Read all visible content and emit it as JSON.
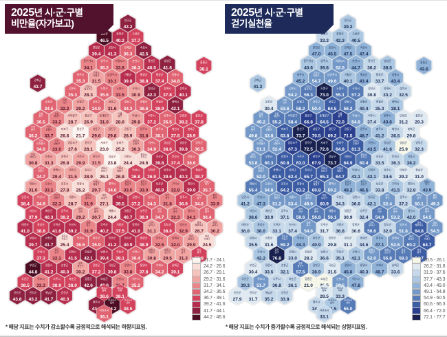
{
  "chart_data": {
    "type": "heatmap",
    "subtype": "hexagonal-cartogram-korea-sigungu",
    "maps": [
      {
        "key": "obesity",
        "header": {
          "year": "2025",
          "line1_rest": "년 시·군·구별",
          "line2": "비만율(자가보고)",
          "bg": "#52122e"
        },
        "footnote": "* 해당 지표는 수치가 감소할수록 긍정적으로 해석되는 하향지표임.",
        "legend_ranges": [
          "21.7 - 24.1",
          "24.2 - 26.6",
          "26.7 - 29.1",
          "29.2 - 31.6",
          "31.7 - 34.1",
          "34.2 - 36.6",
          "36.7 - 39.1",
          "39.2 - 41.6",
          "41.7 - 44.1",
          "44.2 - 46.6"
        ],
        "bounds": [
          21.7,
          24.2,
          26.7,
          29.2,
          31.7,
          34.2,
          36.7,
          39.2,
          41.7,
          44.2
        ],
        "palette": [
          "#fcf4ee",
          "#f9ded8",
          "#f5c2bc",
          "#f0a5a2",
          "#ea8689",
          "#e16472",
          "#d4435e",
          "#b82e4e",
          "#8e2040",
          "#4d0e24"
        ],
        "dark_text": "#531129"
      },
      {
        "key": "walking",
        "header": {
          "year": "2025",
          "line1_rest": "년 시·군·구별",
          "line2": "걷기실천율",
          "bg": "#1d2a5a"
        },
        "footnote": "* 해당 지표는 수치가 증가할수록 긍정적으로 해석되는 상향지표임.",
        "legend_ranges": [
          "20.5 - 26.1",
          "26.2 - 31.8",
          "31.9 - 37.6",
          "37.7 - 43.3",
          "43.4 - 49.0",
          "49.1 - 54.8",
          "54.9 - 60.5",
          "60.6 - 66.3",
          "66.4 - 72.0",
          "72.1 - 77.7"
        ],
        "bounds": [
          20.5,
          26.2,
          31.9,
          37.7,
          43.4,
          49.1,
          54.9,
          60.6,
          66.4,
          72.1
        ],
        "palette": [
          "#f6f7e9",
          "#dfe9f1",
          "#c6d9ea",
          "#abc7e1",
          "#90b3d7",
          "#7499c8",
          "#567bb6",
          "#3c5ca4",
          "#2a3f8d",
          "#18214f"
        ],
        "dark_text": "#1c2b55"
      }
    ],
    "regions_note": "each region: [name, col, row, obesity_pct, walking_pct]",
    "regions": [
      [
        "양구군",
        7,
        0,
        43.2,
        39.2
      ],
      [
        "철원군",
        5.5,
        1,
        46.5,
        33.3
      ],
      [
        "화천군",
        6.5,
        1,
        40.2,
        42.3
      ],
      [
        "고성군",
        7.5,
        1,
        37.7,
        40.5
      ],
      [
        "연천군",
        5,
        2,
        39.4,
        47.0
      ],
      [
        "포천시",
        6,
        2,
        41.3,
        45.5
      ],
      [
        "인제군",
        7,
        2,
        36.3,
        47.5
      ],
      [
        "속초시",
        8,
        2,
        42.5,
        47.4
      ],
      [
        "동두천시",
        4.5,
        3,
        34.1,
        40.6
      ],
      [
        "양주시",
        5.5,
        3,
        36.2,
        39.8
      ],
      [
        "의정부시",
        6.5,
        3,
        33.8,
        52.5
      ],
      [
        "춘천시",
        7.5,
        3,
        36.3,
        44.7
      ],
      [
        "홍천군",
        8.5,
        3,
        40.5,
        36.2
      ],
      [
        "양양군",
        9.5,
        3,
        41.8,
        38.5
      ],
      [
        "울릉군",
        11.8,
        3.1,
        38.1,
        43.6
      ],
      [
        "파주시",
        4,
        4,
        35.3,
        45.2
      ],
      [
        "고양시 덕양구",
        5,
        4,
        31.5,
        54.7
      ],
      [
        "남양주시",
        6,
        4,
        33.1,
        49.6
      ],
      [
        "가평군",
        7,
        4,
        39.8,
        40.1
      ],
      [
        "횡성군",
        8,
        4,
        38.8,
        43.4
      ],
      [
        "평창군",
        9,
        4,
        37.4,
        33.7
      ],
      [
        "강릉시",
        10,
        4,
        34.8,
        43.4
      ],
      [
        "강화군",
        1.3,
        4.4,
        43.7,
        41.3
      ],
      [
        "김포시",
        3.5,
        5,
        35.3,
        54.2
      ],
      [
        "고양시 일산서구",
        4.5,
        5,
        28.3,
        56.3
      ],
      [
        "도봉구",
        5.5,
        5,
        35.6,
        73.0
      ],
      [
        "노원구",
        6.5,
        5,
        33.5,
        55.1
      ],
      [
        "구리시",
        7.5,
        5,
        30.9,
        57.2
      ],
      [
        "정선군",
        8.5,
        5,
        42.3,
        30.8
      ],
      [
        "동해시",
        9.5,
        5,
        37.8,
        33.2
      ],
      [
        "삼척시",
        10.5,
        5,
        40.1,
        32.5
      ],
      [
        "옹진군",
        2,
        6,
        34.5,
        30.4
      ],
      [
        "인천 서구",
        3,
        6,
        32.2,
        53.6
      ],
      [
        "은평구",
        4,
        6,
        29.2,
        58.2
      ],
      [
        "강북구",
        5,
        6,
        34.9,
        50.4
      ],
      [
        "성북구",
        6,
        6,
        31.6,
        64.5
      ],
      [
        "중랑구",
        7,
        6,
        34.3,
        56.2
      ],
      [
        "양평군",
        8,
        6,
        36.6,
        40.4
      ],
      [
        "영월군",
        9,
        6,
        38.9,
        35.3
      ],
      [
        "태백시",
        10,
        6,
        42.1,
        38.1
      ],
      [
        "인천 중구",
        1.5,
        7,
        36.5,
        49.2
      ],
      [
        "인천 계양구",
        2.5,
        7,
        33.2,
        55.2
      ],
      [
        "서대문구",
        3.5,
        7,
        28.7,
        58.4
      ],
      [
        "종로구",
        4.5,
        7,
        26.9,
        66.8
      ],
      [
        "동대문구",
        5.5,
        7,
        31.0,
        64.5
      ],
      [
        "서울 중구",
        6.5,
        7,
        28.6,
        72.0
      ],
      [
        "하남시",
        7.5,
        7,
        29.8,
        54.6
      ],
      [
        "여주시",
        8.5,
        7,
        37.2,
        37.4
      ],
      [
        "원주시",
        9.5,
        7,
        35.5,
        43.6
      ],
      [
        "단양군",
        10.5,
        7,
        38.2,
        31.2
      ],
      [
        "울진군",
        11.5,
        7,
        37.8,
        29.3
      ],
      [
        "인천 동구",
        1,
        8,
        36.2,
        49.8
      ],
      [
        "인천 부평구",
        2,
        8,
        33.7,
        53.8
      ],
      [
        "마포구",
        3,
        8,
        26.6,
        63.8
      ],
      [
        "용산구",
        4,
        8,
        21.7,
        73.7
      ],
      [
        "성동구",
        5,
        8,
        29.6,
        70.5
      ],
      [
        "광진구",
        6,
        8,
        29.8,
        69.2
      ],
      [
        "강동구",
        7,
        8,
        28.9,
        71.5
      ],
      [
        "광주시",
        8,
        8,
        31.8,
        48.7
      ],
      [
        "충주시",
        9,
        8,
        36.1,
        41.2
      ],
      [
        "제천시",
        10,
        8,
        37.6,
        36.5
      ],
      [
        "봉화군",
        11,
        8,
        38.9,
        29.8
      ],
      [
        "인천 미추홀구",
        1.5,
        9,
        34.6,
        51.1
      ],
      [
        "인천 남동구",
        2.5,
        9,
        33.0,
        52.4
      ],
      [
        "영등포구",
        3.5,
        9,
        27.6,
        67.3
      ],
      [
        "동작구",
        4.5,
        9,
        28.1,
        72.5
      ],
      [
        "서초구",
        5.5,
        9,
        23.0,
        72.6
      ],
      [
        "송파구",
        6.5,
        9,
        25.2,
        64.8
      ],
      [
        "성남시 수정구",
        7.5,
        9,
        30.3,
        61.3
      ],
      [
        "이천시",
        8.5,
        9,
        34.9,
        43.5
      ],
      [
        "음성군",
        9.5,
        9,
        38.6,
        41.6
      ],
      [
        "영양군",
        10.5,
        9,
        39.8,
        25.9
      ],
      [
        "영덕군",
        11.5,
        9,
        36.5,
        32.3
      ],
      [
        "인천 연수구",
        1,
        10,
        30.8,
        53.8
      ],
      [
        "부천시",
        2,
        10,
        31.3,
        60.3
      ],
      [
        "양천구",
        3,
        10,
        26.8,
        60.8
      ],
      [
        "구로구",
        4,
        10,
        29.9,
        63.0
      ],
      [
        "관악구",
        5,
        10,
        31.5,
        67.9
      ],
      [
        "강남구",
        6,
        10,
        23.8,
        73.7
      ],
      [
        "과천시",
        7,
        10,
        24.4,
        64.9
      ],
      [
        "용인시 수지구",
        8,
        10,
        24.6,
        60.4
      ],
      [
        "괴산군",
        9,
        10,
        39.8,
        33.5
      ],
      [
        "문경시",
        10,
        10,
        37.4,
        36.3
      ],
      [
        "안동시",
        11,
        10,
        36.6,
        38.2
      ],
      [
        "안산시 단원구",
        1.5,
        11,
        34.7,
        52.0
      ],
      [
        "광명시",
        2.5,
        11,
        29.4,
        61.5
      ],
      [
        "금천구",
        3.5,
        11,
        31.5,
        62.4
      ],
      [
        "강서구",
        4.5,
        11,
        28.9,
        65.7
      ],
      [
        "성남시 분당구",
        5.5,
        11,
        26.1,
        65.3
      ],
      [
        "수원시 영통구",
        6.5,
        11,
        26.8,
        64.7
      ],
      [
        "안성시",
        7.5,
        11,
        36.8,
        43.1
      ],
      [
        "진천군",
        8.5,
        11,
        36.9,
        42.1
      ],
      [
        "상주시",
        9.5,
        11,
        39.6,
        34.6
      ],
      [
        "의성군",
        10.5,
        11,
        40.3,
        29.2
      ],
      [
        "청송군",
        11.5,
        11,
        38.7,
        31.0
      ],
      [
        "화성시",
        1,
        12,
        31.0,
        55.4
      ],
      [
        "오산시",
        2,
        12,
        33.1,
        54.8
      ],
      [
        "군포시",
        3,
        12,
        27.8,
        64.2
      ],
      [
        "의왕시",
        4,
        12,
        25.2,
        63.2
      ],
      [
        "수원시 팔달구",
        5,
        12,
        29.7,
        60.8
      ],
      [
        "평택시",
        6,
        12,
        34.6,
        50.2
      ],
      [
        "천안시 동남구",
        7,
        12,
        33.5,
        48.2
      ],
      [
        "청주시 상당구",
        8,
        12,
        33.0,
        46.5
      ],
      [
        "보은군",
        9,
        12,
        40.9,
        33.8
      ],
      [
        "구미시",
        10,
        12,
        32.8,
        41.5
      ],
      [
        "영천시",
        11,
        12,
        39.9,
        32.8
      ],
      [
        "포항시 북구",
        12,
        12,
        35.7,
        43.9
      ],
      [
        "당진시",
        0.5,
        13,
        38.4,
        41.2
      ],
      [
        "아산시",
        1.5,
        13,
        34.9,
        47.3
      ],
      [
        "천안시 서북구",
        2.5,
        13,
        32.3,
        51.2
      ],
      [
        "세종시",
        3.5,
        13,
        28.7,
        53.4
      ],
      [
        "청주시 흥덕구",
        4.5,
        13,
        31.9,
        49.9
      ],
      [
        "대전 유성구",
        5.5,
        13,
        27.1,
        60.9
      ],
      [
        "옥천군",
        6.5,
        13,
        39.5,
        34.3
      ],
      [
        "김천시",
        7.5,
        13,
        37.2,
        36.6
      ],
      [
        "칠곡군",
        8.5,
        13,
        34.3,
        42.1
      ],
      [
        "대구 북구",
        9.5,
        13,
        31.8,
        52.4
      ],
      [
        "경주시",
        10.5,
        13,
        36.9,
        37.2
      ],
      [
        "포항시 남구",
        11.5,
        13,
        34.6,
        50.1
      ],
      [
        "울산 북구",
        12.5,
        13,
        33.9,
        49.3
      ],
      [
        "서산시",
        1,
        14,
        37.9,
        38.6
      ],
      [
        "예산군",
        2,
        14,
        40.3,
        33.9
      ],
      [
        "공주시",
        3,
        14,
        38.2,
        37.1
      ],
      [
        "대전 서구",
        4,
        14,
        29.2,
        58.6
      ],
      [
        "대전 중구",
        5,
        14,
        30.7,
        56.8
      ],
      [
        "계룡시",
        6,
        14,
        24.4,
        56.1
      ],
      [
        "영동군",
        7,
        14,
        40.7,
        30.9
      ],
      [
        "성주군",
        8,
        14,
        38.0,
        32.4
      ],
      [
        "대구 서구",
        9,
        14,
        34.7,
        54.9
      ],
      [
        "대구 동구",
        10,
        14,
        32.3,
        53.2
      ],
      [
        "경산시",
        11,
        14,
        34.1,
        42.0
      ],
      [
        "울산 동구",
        12,
        14,
        36.4,
        54.5
      ],
      [
        "태안군",
        0.5,
        15,
        41.0,
        36.0
      ],
      [
        "홍성군",
        1.5,
        15,
        38.8,
        38.0
      ],
      [
        "부여군",
        2.5,
        15,
        41.6,
        33.1
      ],
      [
        "논산시",
        3.5,
        15,
        39.2,
        37.4
      ],
      [
        "대전 동구",
        4.5,
        15,
        31.9,
        54.0
      ],
      [
        "무주군",
        5.5,
        15,
        40.2,
        31.7
      ],
      [
        "거창군",
        6.5,
        15,
        37.5,
        36.8
      ],
      [
        "합천군",
        7.5,
        15,
        41.0,
        30.6
      ],
      [
        "대구 달서구",
        8.5,
        15,
        31.1,
        56.6
      ],
      [
        "청도군",
        9.5,
        15,
        38.8,
        32.0
      ],
      [
        "양산시",
        10.5,
        15,
        32.9,
        51.8
      ],
      [
        "부산 해운대구",
        11.5,
        15,
        28.7,
        64.8
      ],
      [
        "부산 금정구",
        12.5,
        15,
        30.2,
        54.5
      ],
      [
        "보령시",
        1,
        16,
        39.7,
        35.5
      ],
      [
        "서천군",
        2,
        16,
        41.7,
        31.6
      ],
      [
        "전주시 덕진구",
        3,
        16,
        25.4,
        59.2
      ],
      [
        "익산시",
        4,
        16,
        36.6,
        44.3
      ],
      [
        "완주군",
        5,
        16,
        35.9,
        40.9
      ],
      [
        "진안군",
        6,
        16,
        41.2,
        29.8
      ],
      [
        "장수군",
        7,
        16,
        40.9,
        31.1
      ],
      [
        "함양군",
        8,
        16,
        38.9,
        34.6
      ],
      [
        "진주시",
        9,
        16,
        32.5,
        47.1
      ],
      [
        "김해시",
        10,
        16,
        32.0,
        52.6
      ],
      [
        "부산 동래구",
        11,
        16,
        29.9,
        60.2
      ],
      [
        "부산 수영구",
        12,
        16,
        24.5,
        64.7
      ],
      [
        "군산시",
        1.5,
        17,
        37.3,
        42.2
      ],
      [
        "광주 남구",
        2.5,
        17,
        32.1,
        76.8
      ],
      [
        "김제시",
        3.5,
        17,
        41.5,
        33.0
      ],
      [
        "임실군",
        4.5,
        17,
        42.1,
        28.2
      ],
      [
        "남원시",
        5.5,
        17,
        39.4,
        36.6
      ],
      [
        "하동군",
        6.5,
        17,
        38.1,
        35.1
      ],
      [
        "사천시",
        7.5,
        17,
        36.4,
        42.1
      ],
      [
        "창원시 의창구",
        8.5,
        17,
        30.8,
        52.0
      ],
      [
        "창원시 성산구",
        9.5,
        17,
        29.5,
        55.8
      ],
      [
        "부산 남구",
        10.5,
        17,
        31.3,
        58.3
      ],
      [
        "부산 중구",
        11.5,
        17,
        36.8,
        64.7
      ],
      [
        "부안군",
        1,
        18,
        44.8,
        30.4
      ],
      [
        "정읍시",
        2,
        18,
        41.2,
        33.5
      ],
      [
        "순창군",
        3,
        18,
        40.0,
        32.1
      ],
      [
        "광주 광산구",
        4,
        18,
        30.2,
        57.5
      ],
      [
        "담양군",
        5,
        18,
        37.2,
        38.9
      ],
      [
        "곡성군",
        6,
        18,
        39.8,
        31.5
      ],
      [
        "광양시",
        7,
        18,
        33.8,
        45.6
      ],
      [
        "통영시",
        8,
        18,
        37.8,
        40.3
      ],
      [
        "거제시",
        9,
        18,
        34.2,
        48.7
      ],
      [
        "남해군",
        10,
        18,
        39.1,
        33.6
      ],
      [
        "무안군",
        0.5,
        19,
        38.5,
        39.3
      ],
      [
        "목포시",
        1.5,
        19,
        33.3,
        51.7
      ],
      [
        "나주시",
        2.5,
        19,
        38.9,
        36.8
      ],
      [
        "화순군",
        3.5,
        19,
        38.0,
        36.1
      ],
      [
        "장흥군",
        4.5,
        19,
        42.6,
        21.0
      ],
      [
        "보성군",
        5.5,
        19,
        43.0,
        20.5
      ],
      [
        "순천시",
        6.5,
        19,
        31.7,
        50.5
      ],
      [
        "여수시",
        7.5,
        19,
        35.2,
        47.8
      ],
      [
        "신안군",
        0,
        20,
        43.8,
        27.9
      ],
      [
        "진도군",
        1,
        20,
        43.2,
        31.7
      ],
      [
        "해남군",
        2,
        20,
        41.7,
        35.2
      ],
      [
        "강진군",
        3,
        20,
        40.3,
        33.8
      ],
      [
        "제주시 동부",
        5.5,
        19.8,
        38.6,
        28.5
      ],
      [
        "제주시 서부",
        6.5,
        19.8,
        38.1,
        33.3
      ],
      [
        "제주시",
        5,
        20.7,
        43.8,
        34.4
      ],
      [
        "서귀포시 동부",
        6,
        20.7,
        44.2,
        41.5
      ],
      [
        "서귀포시 서부",
        7,
        20.7,
        38.5,
        55.0
      ],
      [
        "서귀포시",
        5.5,
        21.3,
        36.1,
        33.1
      ]
    ]
  }
}
